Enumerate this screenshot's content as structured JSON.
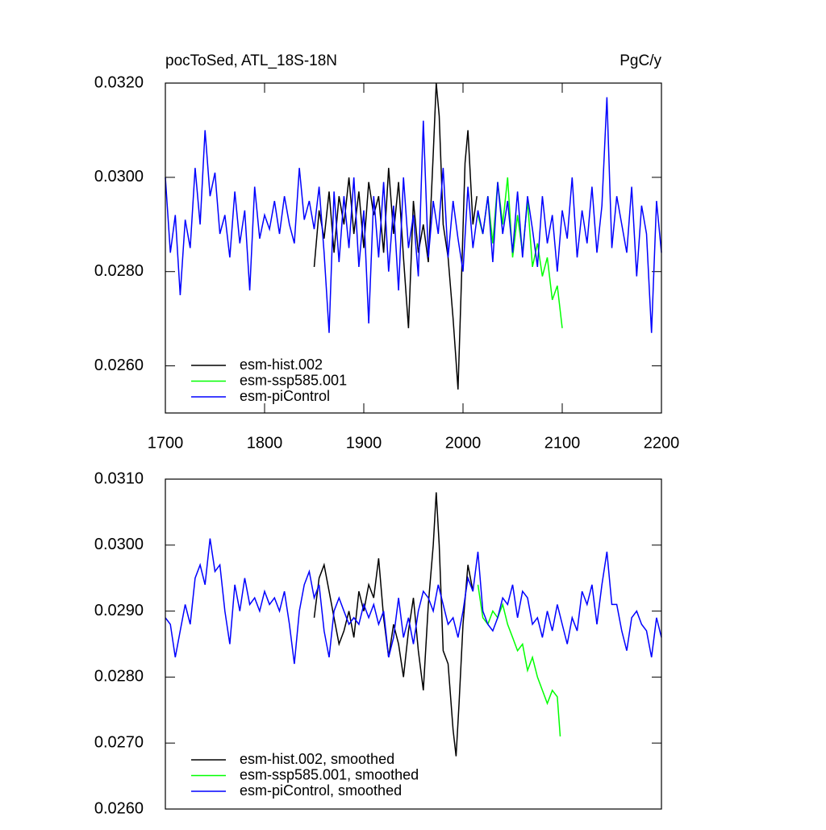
{
  "chart_data": [
    {
      "type": "line",
      "title": "pocToSed, ATL_18S-18N",
      "subtitle": "PgC/y",
      "xlim": [
        1700,
        2200
      ],
      "xticks": [
        1700,
        1800,
        1900,
        2000,
        2100,
        2200
      ],
      "ylim": [
        0.025,
        0.032
      ],
      "yticks": [
        {
          "value": 0.026,
          "label": "0.0260"
        },
        {
          "value": 0.028,
          "label": "0.0280"
        },
        {
          "value": 0.03,
          "label": "0.0300"
        },
        {
          "value": 0.032,
          "label": "0.0320"
        }
      ],
      "legend": "lower left",
      "series": [
        {
          "name": "esm-hist.002",
          "color": "#000000",
          "x": [
            1850,
            1855,
            1860,
            1865,
            1870,
            1875,
            1880,
            1885,
            1890,
            1895,
            1900,
            1905,
            1910,
            1915,
            1920,
            1925,
            1930,
            1935,
            1940,
            1945,
            1950,
            1955,
            1960,
            1965,
            1970,
            1973,
            1976,
            1980,
            1985,
            1990,
            1993,
            1995,
            1998,
            2002,
            2005,
            2010,
            2014
          ],
          "values": [
            0.0281,
            0.0293,
            0.0287,
            0.0297,
            0.0284,
            0.0296,
            0.029,
            0.03,
            0.0288,
            0.0297,
            0.0285,
            0.0299,
            0.0292,
            0.0296,
            0.0284,
            0.0302,
            0.0288,
            0.0299,
            0.0283,
            0.0268,
            0.0295,
            0.0284,
            0.029,
            0.0282,
            0.0305,
            0.032,
            0.0313,
            0.029,
            0.0283,
            0.027,
            0.0261,
            0.0255,
            0.0275,
            0.0303,
            0.031,
            0.029,
            0.0296
          ]
        },
        {
          "name": "esm-ssp585.001",
          "color": "#00ff00",
          "x": [
            2015,
            2020,
            2025,
            2030,
            2035,
            2040,
            2045,
            2050,
            2055,
            2060,
            2065,
            2070,
            2075,
            2080,
            2085,
            2090,
            2095,
            2100
          ],
          "values": [
            0.0292,
            0.0288,
            0.0296,
            0.0286,
            0.0299,
            0.029,
            0.03,
            0.0283,
            0.0292,
            0.0284,
            0.0295,
            0.0281,
            0.0286,
            0.0279,
            0.0283,
            0.0274,
            0.0277,
            0.0268
          ]
        },
        {
          "name": "esm-piControl",
          "color": "#0000ff",
          "x": [
            1700,
            1705,
            1710,
            1715,
            1720,
            1725,
            1730,
            1735,
            1740,
            1745,
            1750,
            1755,
            1760,
            1765,
            1770,
            1775,
            1780,
            1785,
            1790,
            1795,
            1800,
            1805,
            1810,
            1815,
            1820,
            1825,
            1830,
            1835,
            1840,
            1845,
            1850,
            1855,
            1860,
            1865,
            1870,
            1875,
            1880,
            1885,
            1890,
            1895,
            1900,
            1905,
            1910,
            1915,
            1920,
            1925,
            1930,
            1935,
            1940,
            1945,
            1950,
            1955,
            1960,
            1965,
            1970,
            1975,
            1980,
            1985,
            1990,
            1995,
            2000,
            2005,
            2010,
            2015,
            2020,
            2025,
            2030,
            2035,
            2040,
            2045,
            2050,
            2055,
            2060,
            2065,
            2070,
            2075,
            2080,
            2085,
            2090,
            2095,
            2100,
            2105,
            2110,
            2115,
            2120,
            2125,
            2130,
            2135,
            2140,
            2145,
            2150,
            2155,
            2160,
            2165,
            2170,
            2175,
            2180,
            2185,
            2190,
            2195,
            2200
          ],
          "values": [
            0.03,
            0.0284,
            0.0292,
            0.0275,
            0.0291,
            0.0285,
            0.0302,
            0.029,
            0.031,
            0.0296,
            0.0301,
            0.0288,
            0.0292,
            0.0283,
            0.0297,
            0.0286,
            0.0293,
            0.0276,
            0.0298,
            0.0287,
            0.0292,
            0.0289,
            0.0295,
            0.0288,
            0.0296,
            0.029,
            0.0286,
            0.0302,
            0.0291,
            0.0295,
            0.0289,
            0.0298,
            0.0284,
            0.0267,
            0.0297,
            0.0282,
            0.0296,
            0.0285,
            0.03,
            0.0281,
            0.0293,
            0.0269,
            0.0296,
            0.0283,
            0.0299,
            0.028,
            0.0294,
            0.0276,
            0.03,
            0.0285,
            0.0292,
            0.0279,
            0.0312,
            0.0283,
            0.0295,
            0.0288,
            0.0302,
            0.0283,
            0.0295,
            0.0287,
            0.028,
            0.0298,
            0.0285,
            0.0293,
            0.0288,
            0.0296,
            0.0282,
            0.0299,
            0.0288,
            0.0295,
            0.0284,
            0.0297,
            0.0283,
            0.0296,
            0.0289,
            0.0281,
            0.0296,
            0.0286,
            0.0292,
            0.028,
            0.0293,
            0.0287,
            0.03,
            0.0283,
            0.0293,
            0.0286,
            0.0298,
            0.0284,
            0.0294,
            0.0317,
            0.0285,
            0.0296,
            0.029,
            0.0284,
            0.0298,
            0.0279,
            0.0294,
            0.0288,
            0.0267,
            0.0295,
            0.0284
          ]
        }
      ]
    },
    {
      "type": "line",
      "xlim": [
        1700,
        2200
      ],
      "ylim": [
        0.026,
        0.031
      ],
      "yticks": [
        {
          "value": 0.026,
          "label": "0.0260"
        },
        {
          "value": 0.027,
          "label": "0.0270"
        },
        {
          "value": 0.028,
          "label": "0.0280"
        },
        {
          "value": 0.029,
          "label": "0.0290"
        },
        {
          "value": 0.03,
          "label": "0.0300"
        },
        {
          "value": 0.031,
          "label": "0.0310"
        }
      ],
      "legend": "lower left",
      "series": [
        {
          "name": "esm-hist.002, smoothed",
          "color": "#000000",
          "x": [
            1850,
            1855,
            1860,
            1865,
            1870,
            1875,
            1880,
            1885,
            1890,
            1895,
            1900,
            1905,
            1910,
            1915,
            1920,
            1925,
            1930,
            1935,
            1940,
            1945,
            1950,
            1955,
            1960,
            1965,
            1970,
            1973,
            1976,
            1980,
            1985,
            1990,
            1993,
            1996,
            2000,
            2005,
            2010
          ],
          "values": [
            0.0289,
            0.0295,
            0.0297,
            0.0293,
            0.0289,
            0.0285,
            0.0287,
            0.029,
            0.0286,
            0.0293,
            0.029,
            0.0294,
            0.0292,
            0.0298,
            0.0289,
            0.0283,
            0.0288,
            0.0285,
            0.028,
            0.0287,
            0.0292,
            0.0284,
            0.0278,
            0.0291,
            0.03,
            0.0308,
            0.03,
            0.0284,
            0.0282,
            0.0272,
            0.0268,
            0.0276,
            0.0288,
            0.0297,
            0.0293
          ]
        },
        {
          "name": "esm-ssp585.001, smoothed",
          "color": "#00ff00",
          "x": [
            2015,
            2020,
            2025,
            2030,
            2035,
            2040,
            2045,
            2050,
            2055,
            2060,
            2065,
            2070,
            2075,
            2080,
            2085,
            2090,
            2095,
            2098
          ],
          "values": [
            0.0294,
            0.0289,
            0.0288,
            0.029,
            0.0289,
            0.0291,
            0.0288,
            0.0286,
            0.0284,
            0.0285,
            0.0281,
            0.0283,
            0.028,
            0.0278,
            0.0276,
            0.0278,
            0.0277,
            0.0271
          ]
        },
        {
          "name": "esm-piControl, smoothed",
          "color": "#0000ff",
          "x": [
            1700,
            1705,
            1710,
            1715,
            1720,
            1725,
            1730,
            1735,
            1740,
            1745,
            1750,
            1755,
            1760,
            1765,
            1770,
            1775,
            1780,
            1785,
            1790,
            1795,
            1800,
            1805,
            1810,
            1815,
            1820,
            1825,
            1830,
            1835,
            1840,
            1845,
            1850,
            1855,
            1860,
            1865,
            1870,
            1875,
            1880,
            1885,
            1890,
            1895,
            1900,
            1905,
            1910,
            1915,
            1920,
            1925,
            1930,
            1935,
            1940,
            1945,
            1950,
            1955,
            1960,
            1965,
            1970,
            1975,
            1980,
            1985,
            1990,
            1995,
            2000,
            2005,
            2010,
            2015,
            2020,
            2025,
            2030,
            2035,
            2040,
            2045,
            2050,
            2055,
            2060,
            2065,
            2070,
            2075,
            2080,
            2085,
            2090,
            2095,
            2100,
            2105,
            2110,
            2115,
            2120,
            2125,
            2130,
            2135,
            2140,
            2145,
            2150,
            2155,
            2160,
            2165,
            2170,
            2175,
            2180,
            2185,
            2190,
            2195,
            2200
          ],
          "values": [
            0.0289,
            0.0288,
            0.0283,
            0.0287,
            0.0291,
            0.0288,
            0.0295,
            0.0297,
            0.0294,
            0.0301,
            0.0296,
            0.0297,
            0.029,
            0.0285,
            0.0294,
            0.029,
            0.0295,
            0.0291,
            0.0292,
            0.029,
            0.0293,
            0.0291,
            0.0292,
            0.029,
            0.0293,
            0.0288,
            0.0282,
            0.029,
            0.0294,
            0.0296,
            0.0292,
            0.0294,
            0.0287,
            0.0283,
            0.029,
            0.0292,
            0.029,
            0.0288,
            0.0289,
            0.0288,
            0.0291,
            0.0289,
            0.0291,
            0.0288,
            0.029,
            0.0283,
            0.0286,
            0.0292,
            0.0286,
            0.0289,
            0.0285,
            0.029,
            0.0293,
            0.0292,
            0.029,
            0.0294,
            0.0291,
            0.0288,
            0.0289,
            0.0286,
            0.029,
            0.0295,
            0.0293,
            0.0299,
            0.029,
            0.0288,
            0.0287,
            0.0289,
            0.0292,
            0.0291,
            0.0294,
            0.0289,
            0.0293,
            0.0292,
            0.0288,
            0.0289,
            0.0286,
            0.029,
            0.0287,
            0.0291,
            0.0288,
            0.0285,
            0.0289,
            0.0287,
            0.0293,
            0.0291,
            0.0294,
            0.0288,
            0.0294,
            0.0299,
            0.0291,
            0.0291,
            0.0287,
            0.0284,
            0.0289,
            0.029,
            0.0288,
            0.0287,
            0.0283,
            0.0289,
            0.0286
          ]
        }
      ]
    }
  ]
}
